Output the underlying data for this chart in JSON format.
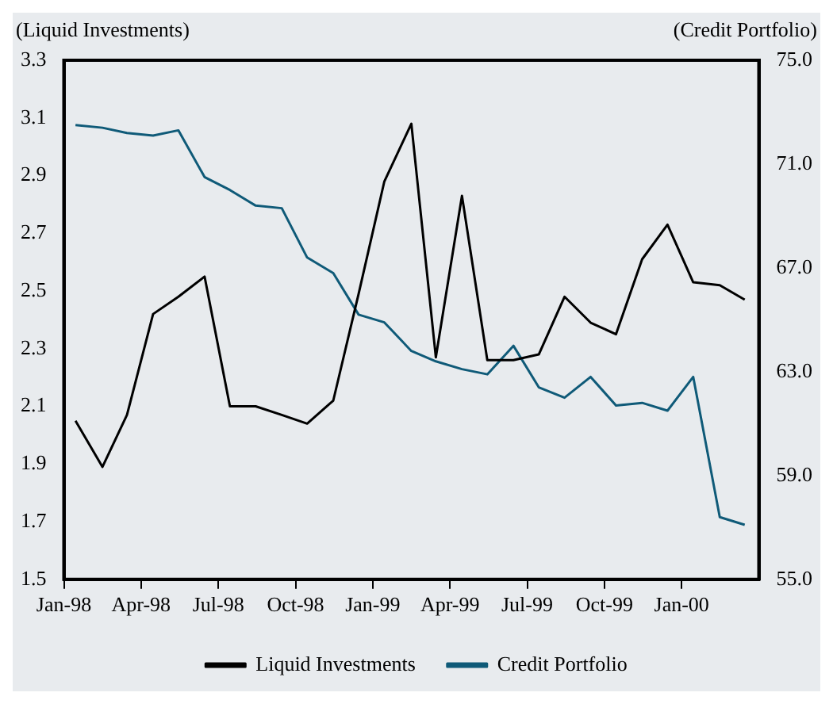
{
  "chart_data": {
    "type": "line",
    "ylabel": "(Liquid Investments)",
    "y2label": "(Credit Portfolio)",
    "x": [
      "1998-01-15",
      "1998-02-15",
      "1998-03-15",
      "1998-04-15",
      "1998-05-15",
      "1998-06-15",
      "1998-07-15",
      "1998-08-15",
      "1998-09-15",
      "1998-10-15",
      "1998-11-15",
      "1998-12-15",
      "1999-01-15",
      "1999-02-15",
      "1999-03-15",
      "1999-04-15",
      "1999-05-15",
      "1999-06-15",
      "1999-07-15",
      "1999-08-15",
      "1999-09-15",
      "1999-10-15",
      "1999-11-15",
      "1999-12-15",
      "2000-01-15",
      "2000-02-15",
      "2000-03-15"
    ],
    "series": [
      {
        "name": "Liquid Investments",
        "color": "#000000",
        "values": [
          2.05,
          1.89,
          2.07,
          2.42,
          2.48,
          2.55,
          2.1,
          2.1,
          2.07,
          2.04,
          2.12,
          2.49,
          2.88,
          3.08,
          2.27,
          2.83,
          2.26,
          2.26,
          2.28,
          2.48,
          2.39,
          2.35,
          2.61,
          2.73,
          2.53,
          2.52,
          2.47
        ]
      },
      {
        "name": "Credit Portfolio",
        "color": "#0f5a78",
        "axis": "y2",
        "values": [
          72.5,
          72.4,
          72.2,
          72.1,
          72.3,
          70.5,
          70.0,
          69.4,
          69.3,
          67.4,
          66.8,
          65.2,
          64.9,
          63.8,
          63.4,
          63.1,
          62.9,
          64.0,
          62.4,
          62.0,
          62.8,
          61.7,
          61.8,
          61.5,
          62.8,
          57.4,
          57.1
        ]
      }
    ],
    "xlim": [
      "1998-01-01",
      "2000-04-01"
    ],
    "xticks": [
      {
        "value": "1998-01-01",
        "label": "Jan-98"
      },
      {
        "value": "1998-04-01",
        "label": "Apr-98"
      },
      {
        "value": "1998-07-01",
        "label": "Jul-98"
      },
      {
        "value": "1998-10-01",
        "label": "Oct-98"
      },
      {
        "value": "1999-01-01",
        "label": "Jan-99"
      },
      {
        "value": "1999-04-01",
        "label": "Apr-99"
      },
      {
        "value": "1999-07-01",
        "label": "Jul-99"
      },
      {
        "value": "1999-10-01",
        "label": "Oct-99"
      },
      {
        "value": "2000-01-01",
        "label": "Jan-00"
      }
    ],
    "ylim": [
      1.5,
      3.3
    ],
    "yticks": [
      1.5,
      1.7,
      1.9,
      2.1,
      2.3,
      2.5,
      2.7,
      2.9,
      3.1,
      3.3
    ],
    "y2lim": [
      55,
      75
    ],
    "y2ticks": [
      {
        "value": 55,
        "label": "55.0"
      },
      {
        "value": 59,
        "label": "59.0"
      },
      {
        "value": 63,
        "label": "63.0"
      },
      {
        "value": 67,
        "label": "67.0"
      },
      {
        "value": 71,
        "label": "71.0"
      },
      {
        "value": 75,
        "label": "75.0"
      }
    ],
    "legend": "bottom",
    "marker": "none",
    "line_style": "solid"
  }
}
